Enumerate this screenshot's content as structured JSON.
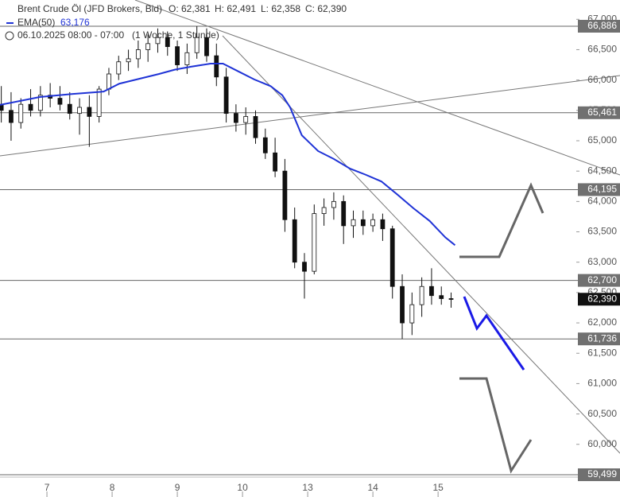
{
  "chart_data": {
    "type": "candlestick",
    "title": "Brent Crude Öl (JFD Brokers, Bid)",
    "ohlc_labels": [
      "O: 62,381",
      "H: 62,491",
      "L: 62,358",
      "C: 62,390"
    ],
    "period": "06.10.2025 08:00 - 07:00",
    "interval": "(1 Woche, 1 Stunde)",
    "up_color": "#ffffff",
    "down_color": "#111111",
    "candles": {
      "x": [
        -0.7,
        -0.55,
        -0.4,
        -0.25,
        -0.1,
        0.05,
        0.2,
        0.35,
        0.5,
        0.65,
        0.8,
        0.95,
        1.1,
        1.25,
        1.4,
        1.55,
        1.7,
        1.85,
        2.0,
        2.15,
        2.3,
        2.45,
        2.6,
        2.75,
        2.9,
        3.05,
        3.2,
        3.35,
        3.5,
        3.65,
        3.8,
        3.95,
        4.1,
        4.25,
        4.4,
        4.55,
        4.7,
        4.85,
        5.0,
        5.15,
        5.3,
        5.45,
        5.6,
        5.75,
        5.9,
        6.05,
        6.2
      ],
      "open": [
        65600,
        65500,
        65300,
        65600,
        65500,
        65750,
        65700,
        65600,
        65450,
        65550,
        65400,
        65850,
        66100,
        66300,
        66350,
        66500,
        66600,
        66700,
        66550,
        66250,
        66450,
        66700,
        66400,
        66050,
        65450,
        65300,
        65400,
        65050,
        64800,
        64500,
        63700,
        63000,
        62850,
        63800,
        63900,
        64000,
        63600,
        63700,
        63600,
        63700,
        63550,
        62600,
        62000,
        62300,
        62600,
        62450,
        62400
      ],
      "high": [
        65900,
        65800,
        65700,
        65850,
        65900,
        65950,
        65900,
        65800,
        65700,
        65750,
        65900,
        66200,
        66400,
        66500,
        66650,
        66750,
        66850,
        66800,
        66650,
        66600,
        66886,
        66850,
        66600,
        66200,
        65600,
        65550,
        65500,
        65200,
        65050,
        64700,
        63900,
        63150,
        63950,
        64050,
        64150,
        64100,
        63850,
        63850,
        63800,
        63800,
        63600,
        62800,
        62500,
        62750,
        62900,
        62600,
        62500
      ],
      "low": [
        65300,
        65000,
        65200,
        65400,
        65400,
        65550,
        65500,
        65350,
        65100,
        64900,
        65300,
        65750,
        66000,
        66150,
        66200,
        66300,
        66450,
        66400,
        66150,
        66100,
        66350,
        66300,
        65900,
        65300,
        65150,
        65100,
        64950,
        64700,
        64400,
        63500,
        62900,
        62400,
        62800,
        63600,
        63700,
        63300,
        63400,
        63450,
        63500,
        63350,
        62400,
        61736,
        61800,
        62100,
        62300,
        62300,
        62250
      ],
      "close": [
        65500,
        65300,
        65600,
        65500,
        65750,
        65700,
        65600,
        65450,
        65550,
        65400,
        65850,
        66100,
        66300,
        66350,
        66500,
        66600,
        66700,
        66550,
        66250,
        66450,
        66700,
        66400,
        66050,
        65450,
        65300,
        65400,
        65050,
        64800,
        64500,
        63700,
        63000,
        62850,
        63800,
        63900,
        64000,
        63600,
        63700,
        63600,
        63700,
        63550,
        62600,
        62000,
        62300,
        62600,
        62450,
        62400,
        62390
      ]
    },
    "ema": {
      "name": "EMA(50)",
      "value_label": "63,176",
      "color": "#1f33d6",
      "x": [
        -0.72,
        -0.11,
        0.38,
        0.87,
        1.11,
        1.72,
        1.96,
        2.21,
        2.51,
        2.7,
        2.94,
        3.18,
        3.43,
        3.61,
        3.73,
        3.91,
        4.16,
        4.4,
        4.65,
        4.89,
        5.13,
        5.38,
        5.62,
        5.87,
        6.11,
        6.26
      ],
      "values": [
        65590,
        65720,
        65770,
        65810,
        65940,
        66100,
        66170,
        66220,
        66270,
        66270,
        66140,
        66010,
        65900,
        65750,
        65550,
        65090,
        64830,
        64700,
        64540,
        64440,
        64330,
        64110,
        63890,
        63680,
        63410,
        63280
      ]
    },
    "levels": [
      {
        "value": 66886,
        "label": "66,886"
      },
      {
        "value": 65461,
        "label": "65,461"
      },
      {
        "value": 64195,
        "label": "64,195"
      },
      {
        "value": 62700,
        "label": "62,700"
      },
      {
        "value": 61736,
        "label": "61,736"
      },
      {
        "value": 59499,
        "label": "59,499"
      }
    ],
    "last_price": {
      "value": 62390,
      "label": "62,390"
    },
    "ylim": [
      59460,
      67318
    ],
    "yticks": [
      {
        "value": 60000,
        "label": "60,000"
      },
      {
        "value": 60500,
        "label": "60,500"
      },
      {
        "value": 61000,
        "label": "61,000"
      },
      {
        "value": 61500,
        "label": "61,500"
      },
      {
        "value": 62000,
        "label": "62,000"
      },
      {
        "value": 62500,
        "label": "62,500"
      },
      {
        "value": 63000,
        "label": "63,000"
      },
      {
        "value": 63500,
        "label": "63,500"
      },
      {
        "value": 64000,
        "label": "64,000"
      },
      {
        "value": 64500,
        "label": "64,500"
      },
      {
        "value": 65000,
        "label": "65,000"
      },
      {
        "value": 65500,
        "label": "65,500"
      },
      {
        "value": 66000,
        "label": "66,000"
      },
      {
        "value": 66500,
        "label": "66,500"
      },
      {
        "value": 67000,
        "label": "67,000"
      }
    ],
    "xlim": [
      -0.72,
      8.12
    ],
    "xticks": [
      {
        "value": 0,
        "label": "7"
      },
      {
        "value": 1,
        "label": "8"
      },
      {
        "value": 2,
        "label": "9"
      },
      {
        "value": 3,
        "label": "10"
      },
      {
        "value": 4,
        "label": "13"
      },
      {
        "value": 5,
        "label": "14"
      },
      {
        "value": 6,
        "label": "15"
      }
    ]
  }
}
